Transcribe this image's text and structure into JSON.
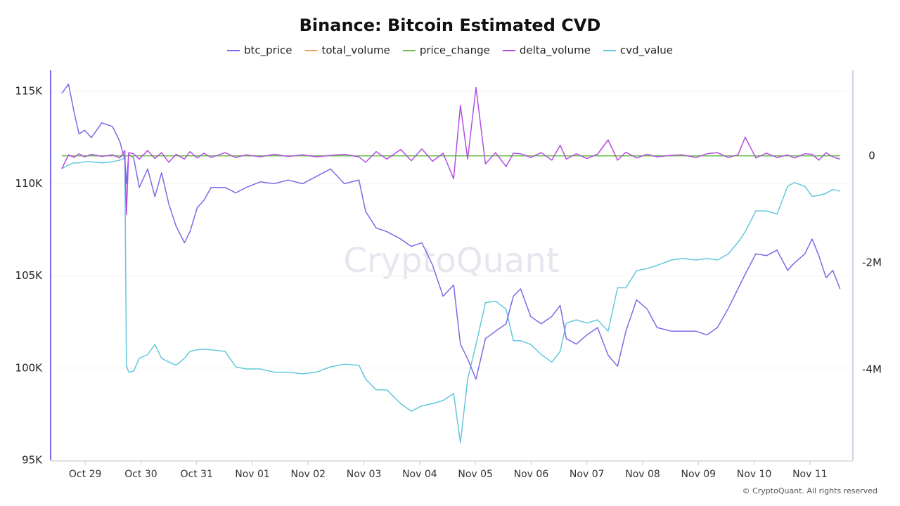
{
  "chart_data": {
    "type": "line",
    "title": "Binance: Bitcoin Estimated CVD",
    "watermark": "CryptoQuant",
    "footer": "© CryptoQuant. All rights reserved",
    "x": [
      -0.42,
      -0.3,
      -0.2,
      -0.11,
      -0.01,
      0.11,
      0.3,
      0.49,
      0.62,
      0.71,
      0.74,
      0.78,
      0.87,
      0.97,
      1.12,
      1.25,
      1.37,
      1.5,
      1.63,
      1.78,
      1.88,
      2.01,
      2.13,
      2.26,
      2.51,
      2.7,
      2.89,
      3.14,
      3.39,
      3.64,
      3.9,
      4.15,
      4.4,
      4.65,
      4.91,
      5.03,
      5.22,
      5.41,
      5.66,
      5.85,
      6.04,
      6.23,
      6.42,
      6.61,
      6.73,
      6.86,
      7.01,
      7.18,
      7.36,
      7.55,
      7.68,
      7.81,
      7.99,
      8.18,
      8.37,
      8.52,
      8.63,
      8.81,
      9,
      9.19,
      9.38,
      9.55,
      9.7,
      9.89,
      10.08,
      10.26,
      10.52,
      10.71,
      10.96,
      11.15,
      11.34,
      11.53,
      11.71,
      11.84,
      12.03,
      12.22,
      12.41,
      12.6,
      12.72,
      12.91,
      13.04,
      13.16,
      13.29,
      13.41,
      13.54
    ],
    "xlim": [
      -0.62,
      13.67
    ],
    "xticks": [
      {
        "value": 0,
        "label": "Oct 29"
      },
      {
        "value": 1,
        "label": "Oct 30"
      },
      {
        "value": 2,
        "label": "Oct 31"
      },
      {
        "value": 3,
        "label": "Nov 01"
      },
      {
        "value": 4,
        "label": "Nov 02"
      },
      {
        "value": 5,
        "label": "Nov 03"
      },
      {
        "value": 6,
        "label": "Nov 04"
      },
      {
        "value": 7,
        "label": "Nov 05"
      },
      {
        "value": 8,
        "label": "Nov 06"
      },
      {
        "value": 9,
        "label": "Nov 07"
      },
      {
        "value": 10,
        "label": "Nov 08"
      },
      {
        "value": 11,
        "label": "Nov 09"
      },
      {
        "value": 12,
        "label": "Nov 10"
      },
      {
        "value": 13,
        "label": "Nov 11"
      }
    ],
    "ylim": [
      95000,
      116000
    ],
    "yticks": [
      {
        "value": 95000,
        "label": "95K"
      },
      {
        "value": 100000,
        "label": "100K"
      },
      {
        "value": 105000,
        "label": "105K"
      },
      {
        "value": 110000,
        "label": "110K"
      },
      {
        "value": 115000,
        "label": "115K"
      }
    ],
    "y2lim": [
      -5700000,
      1550000
    ],
    "y2ticks": [
      {
        "value": -4000000,
        "label": "-4M"
      },
      {
        "value": -2000000,
        "label": "-2M"
      },
      0
    ],
    "grid": true,
    "series": [
      {
        "name": "btc_price",
        "color": "#7b6be6",
        "values": [
          114900,
          115400,
          113900,
          112700,
          112900,
          112500,
          113300,
          113100,
          112300,
          111300,
          110000,
          111600,
          111400,
          109800,
          110800,
          109300,
          110600,
          108900,
          107700,
          106800,
          107400,
          108700,
          109100,
          109800,
          109800,
          109500,
          109800,
          110100,
          110000,
          110200,
          110000,
          110400,
          110800,
          110000,
          110200,
          108500,
          107600,
          107400,
          107000,
          106600,
          106800,
          105600,
          103900,
          104500,
          101300,
          100500,
          99400,
          101600,
          102000,
          102400,
          103900,
          104300,
          102800,
          102400,
          102800,
          103400,
          101600,
          101300,
          101800,
          102200,
          100700,
          100100,
          102000,
          103700,
          103200,
          102200,
          102000,
          102000,
          102000,
          101800,
          102200,
          103200,
          104300,
          105100,
          106200,
          106100,
          106400,
          105300,
          105700,
          106200,
          107000,
          106100,
          104900,
          105300,
          104300
        ]
      },
      {
        "name": "total_volume",
        "color": "#f0a35e",
        "axis": "y2",
        "values": [
          0,
          0,
          0,
          0,
          0,
          0,
          0,
          0,
          0,
          0,
          0,
          0,
          0,
          0,
          0,
          0,
          0,
          0,
          0,
          0,
          0,
          0,
          0,
          0,
          0,
          0,
          0,
          0,
          0,
          0,
          0,
          0,
          0,
          0,
          0,
          0,
          0,
          0,
          0,
          0,
          0,
          0,
          0,
          0,
          0,
          0,
          0,
          0,
          0,
          0,
          0,
          0,
          0,
          0,
          0,
          0,
          0,
          0,
          0,
          0,
          0,
          0,
          0,
          0,
          0,
          0,
          0,
          0,
          0,
          0,
          0,
          0,
          0,
          0,
          0,
          0,
          0,
          0,
          0,
          0,
          0,
          0,
          0,
          0,
          0
        ]
      },
      {
        "name": "price_change",
        "color": "#6ac04a",
        "axis": "y2",
        "values": [
          0,
          0,
          0,
          0,
          0,
          0,
          0,
          0,
          0,
          0,
          0,
          0,
          0,
          0,
          0,
          0,
          0,
          0,
          0,
          0,
          0,
          0,
          0,
          0,
          0,
          0,
          0,
          0,
          0,
          0,
          0,
          0,
          0,
          0,
          0,
          0,
          0,
          0,
          0,
          0,
          0,
          0,
          0,
          0,
          0,
          0,
          0,
          0,
          0,
          0,
          0,
          0,
          0,
          0,
          0,
          0,
          0,
          0,
          0,
          0,
          0,
          0,
          0,
          0,
          0,
          0,
          0,
          0,
          0,
          0,
          0,
          0,
          0,
          0,
          0,
          0,
          0,
          0,
          0,
          0,
          0,
          0,
          0,
          0,
          0
        ]
      },
      {
        "name": "delta_volume",
        "color": "#b34fe0",
        "axis": "y2",
        "values": [
          -240000,
          20000,
          -30000,
          40000,
          -20000,
          30000,
          -10000,
          20000,
          -40000,
          100000,
          -1100000,
          60000,
          40000,
          -60000,
          100000,
          -50000,
          60000,
          -120000,
          30000,
          -60000,
          80000,
          -40000,
          50000,
          -30000,
          60000,
          -30000,
          20000,
          -20000,
          30000,
          -10000,
          20000,
          -20000,
          10000,
          30000,
          -20000,
          -120000,
          80000,
          -60000,
          120000,
          -90000,
          130000,
          -100000,
          50000,
          -430000,
          950000,
          -60000,
          1280000,
          -150000,
          60000,
          -200000,
          50000,
          40000,
          -30000,
          60000,
          -80000,
          200000,
          -60000,
          40000,
          -50000,
          30000,
          300000,
          -80000,
          70000,
          -40000,
          30000,
          -20000,
          10000,
          20000,
          -30000,
          40000,
          60000,
          -30000,
          20000,
          350000,
          -40000,
          50000,
          -30000,
          20000,
          -40000,
          40000,
          30000,
          -80000,
          60000,
          -20000,
          -60000
        ]
      },
      {
        "name": "cvd_value",
        "color": "#62c9dc",
        "axis": "y2",
        "values": [
          -240000,
          -170000,
          -130000,
          -130000,
          -110000,
          -110000,
          -130000,
          -110000,
          -80000,
          -40000,
          -3920000,
          -4050000,
          -4030000,
          -3790000,
          -3720000,
          -3530000,
          -3790000,
          -3860000,
          -3920000,
          -3790000,
          -3660000,
          -3630000,
          -3620000,
          -3630000,
          -3660000,
          -3950000,
          -3990000,
          -3990000,
          -4050000,
          -4050000,
          -4080000,
          -4050000,
          -3950000,
          -3900000,
          -3920000,
          -4180000,
          -4380000,
          -4380000,
          -4640000,
          -4780000,
          -4680000,
          -4640000,
          -4580000,
          -4450000,
          -5370000,
          -4180000,
          -3530000,
          -2750000,
          -2720000,
          -2870000,
          -3460000,
          -3460000,
          -3530000,
          -3720000,
          -3860000,
          -3660000,
          -3130000,
          -3070000,
          -3130000,
          -3070000,
          -3280000,
          -2470000,
          -2470000,
          -2150000,
          -2110000,
          -2050000,
          -1950000,
          -1920000,
          -1950000,
          -1920000,
          -1950000,
          -1840000,
          -1620000,
          -1420000,
          -1030000,
          -1030000,
          -1090000,
          -570000,
          -500000,
          -570000,
          -760000,
          -740000,
          -700000,
          -630000,
          -660000
        ]
      }
    ]
  }
}
